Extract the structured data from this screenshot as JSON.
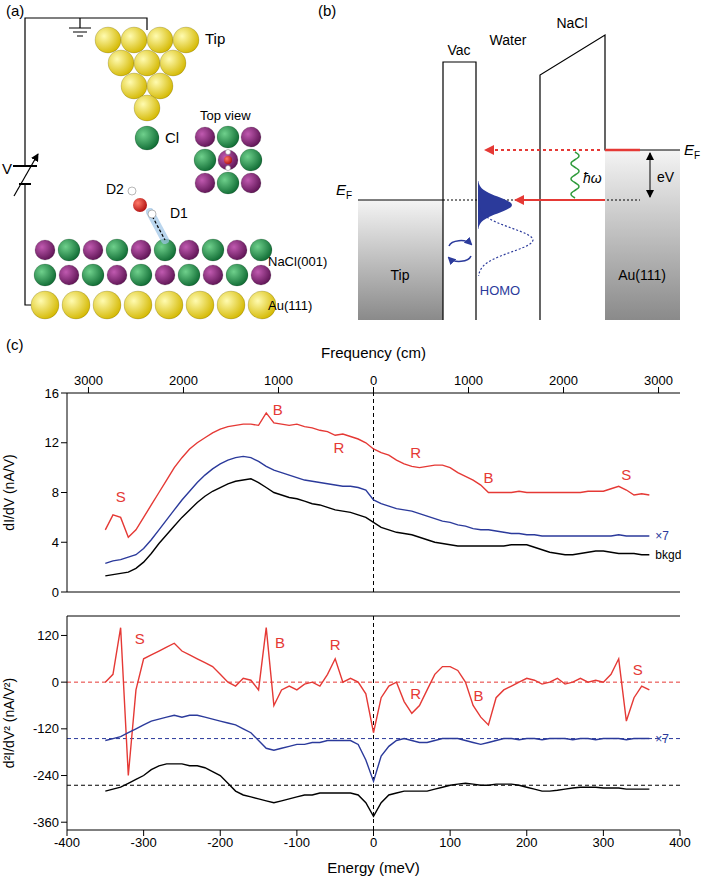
{
  "diagram_a": {
    "label": "(a)",
    "tip": "Tip",
    "cl": "Cl",
    "d2": "D2",
    "d1": "D1",
    "top_view": "Top view",
    "nacl": "NaCl(001)",
    "au": "Au(111)",
    "voltage": "V"
  },
  "diagram_b": {
    "label": "(b)",
    "vac": "Vac",
    "water": "Water",
    "nacl": "NaCl",
    "tip": "Tip",
    "au": "Au(111)",
    "fermi": {
      "main": "E",
      "sub": "F"
    },
    "bias": "eV",
    "photon": "ħω",
    "homo": "HOMO"
  },
  "panel_c": {
    "label": "(c)"
  },
  "chart_data": [
    {
      "type": "line",
      "x2label": "Frequency (cm)",
      "ylabel": "dI/dV (nA/V)",
      "xlim": [
        -400,
        400
      ],
      "x2lim": [
        -400,
        400
      ],
      "x2ticks": [
        {
          "value": -372,
          "label": "3000"
        },
        {
          "value": -248,
          "label": "2000"
        },
        {
          "value": -124,
          "label": "1000"
        },
        0,
        {
          "value": 124,
          "label": "1000"
        },
        {
          "value": 248,
          "label": "2000"
        },
        {
          "value": 372,
          "label": "3000"
        }
      ],
      "ylim": [
        0,
        16
      ],
      "yticks": [
        0,
        4,
        8,
        12,
        16
      ],
      "x": [
        -350,
        -340,
        -330,
        -320,
        -310,
        -300,
        -290,
        -280,
        -270,
        -260,
        -250,
        -240,
        -230,
        -220,
        -210,
        -200,
        -190,
        -180,
        -170,
        -160,
        -150,
        -140,
        -130,
        -120,
        -110,
        -100,
        -90,
        -80,
        -70,
        -60,
        -50,
        -40,
        -30,
        -20,
        -10,
        0,
        10,
        20,
        30,
        40,
        50,
        60,
        70,
        80,
        90,
        100,
        110,
        120,
        130,
        140,
        150,
        160,
        170,
        180,
        190,
        200,
        210,
        220,
        230,
        240,
        250,
        260,
        270,
        280,
        290,
        300,
        310,
        320,
        330,
        340,
        350,
        360
      ],
      "series": [
        {
          "color": "#e53935",
          "values": [
            5.0,
            6.2,
            6.0,
            4.4,
            5.0,
            6.0,
            7.0,
            8.0,
            9.0,
            10.0,
            10.8,
            11.5,
            12.0,
            12.4,
            12.8,
            13.1,
            13.3,
            13.4,
            13.5,
            13.5,
            13.4,
            14.4,
            13.6,
            13.5,
            13.4,
            13.5,
            13.3,
            13.2,
            13.0,
            12.9,
            12.6,
            12.7,
            12.5,
            12.3,
            12.0,
            11.5,
            11.2,
            11.0,
            10.6,
            10.3,
            10.1,
            10.0,
            10.1,
            10.2,
            10.2,
            10.0,
            9.6,
            9.3,
            9.0,
            8.6,
            8.0,
            8.0,
            8.0,
            8.0,
            8.1,
            8.0,
            8.0,
            8.0,
            8.0,
            8.0,
            8.0,
            8.0,
            8.0,
            8.1,
            8.1,
            8.1,
            8.3,
            8.5,
            8.2,
            7.8,
            7.9,
            7.8
          ]
        },
        {
          "name": "×7",
          "color": "#2b3a9b",
          "values": [
            2.3,
            2.5,
            2.6,
            2.8,
            3.0,
            3.5,
            4.2,
            5.0,
            5.8,
            6.6,
            7.4,
            8.1,
            8.8,
            9.4,
            9.9,
            10.3,
            10.6,
            10.8,
            10.9,
            10.8,
            10.5,
            10.1,
            9.8,
            9.6,
            9.4,
            9.2,
            9.0,
            8.9,
            8.8,
            8.7,
            8.6,
            8.5,
            8.5,
            8.4,
            8.2,
            7.4,
            7.1,
            6.9,
            6.7,
            6.6,
            6.5,
            6.3,
            6.1,
            5.9,
            5.7,
            5.6,
            5.4,
            5.3,
            5.1,
            5.0,
            5.0,
            4.9,
            4.8,
            4.7,
            4.7,
            4.6,
            4.6,
            4.5,
            4.5,
            4.5,
            4.5,
            4.5,
            4.5,
            4.5,
            4.5,
            4.5,
            4.5,
            4.6,
            4.5,
            4.5,
            4.5,
            4.5
          ]
        },
        {
          "name": "bkgd",
          "color": "#000000",
          "values": [
            1.3,
            1.4,
            1.5,
            1.6,
            1.9,
            2.4,
            3.1,
            3.9,
            4.6,
            5.3,
            6.0,
            6.6,
            7.2,
            7.7,
            8.1,
            8.4,
            8.7,
            8.9,
            9.0,
            9.1,
            8.8,
            8.4,
            8.0,
            7.8,
            7.6,
            7.5,
            7.3,
            7.1,
            7.0,
            6.8,
            6.6,
            6.5,
            6.4,
            6.2,
            6.0,
            5.6,
            5.2,
            5.0,
            4.8,
            4.7,
            4.6,
            4.4,
            4.2,
            4.0,
            3.9,
            3.8,
            3.7,
            3.7,
            3.7,
            3.7,
            3.7,
            3.7,
            3.7,
            3.8,
            3.8,
            3.8,
            3.6,
            3.4,
            3.2,
            3.1,
            3.0,
            3.0,
            3.1,
            3.2,
            3.3,
            3.3,
            3.2,
            3.1,
            3.1,
            3.1,
            3.0,
            3.0
          ]
        }
      ],
      "annotations": [
        {
          "text": "S",
          "x": -330,
          "y": 7.6,
          "color": "#e53935"
        },
        {
          "text": "B",
          "x": -125,
          "y": 14.6,
          "color": "#e53935"
        },
        {
          "text": "R",
          "x": -45,
          "y": 11.6,
          "color": "#e53935"
        },
        {
          "text": "R",
          "x": 55,
          "y": 11.2,
          "color": "#e53935"
        },
        {
          "text": "B",
          "x": 150,
          "y": 9.2,
          "color": "#e53935"
        },
        {
          "text": "S",
          "x": 330,
          "y": 9.4,
          "color": "#e53935"
        }
      ],
      "reference_lines": [
        {
          "x": 0,
          "color": "#000000",
          "line_style": "dashed"
        }
      ]
    },
    {
      "type": "line",
      "xlabel": "Energy (meV)",
      "ylabel": "d²I/dV² (nA/V²)",
      "xlim": [
        -400,
        400
      ],
      "xticks": [
        -400,
        -300,
        -200,
        -100,
        0,
        100,
        200,
        300,
        400
      ],
      "ylim": [
        -380,
        170
      ],
      "yticks": [
        -360,
        -240,
        -120,
        0,
        120
      ],
      "x": [
        -350,
        -340,
        -330,
        -320,
        -310,
        -300,
        -290,
        -280,
        -270,
        -260,
        -250,
        -240,
        -230,
        -220,
        -210,
        -200,
        -190,
        -180,
        -170,
        -160,
        -150,
        -140,
        -130,
        -120,
        -110,
        -100,
        -90,
        -80,
        -70,
        -60,
        -50,
        -40,
        -30,
        -20,
        -10,
        0,
        10,
        20,
        30,
        40,
        50,
        60,
        70,
        80,
        90,
        100,
        110,
        120,
        130,
        140,
        150,
        160,
        170,
        180,
        190,
        200,
        210,
        220,
        230,
        240,
        250,
        260,
        270,
        280,
        290,
        300,
        310,
        320,
        330,
        340,
        350,
        360
      ],
      "series": [
        {
          "color": "#e53935",
          "values": [
            0,
            20,
            140,
            -240,
            -20,
            60,
            70,
            80,
            90,
            100,
            80,
            70,
            60,
            50,
            40,
            20,
            0,
            -10,
            10,
            5,
            -20,
            140,
            -60,
            -20,
            -10,
            -20,
            -5,
            0,
            -10,
            20,
            60,
            0,
            10,
            0,
            -30,
            -130,
            -40,
            -10,
            0,
            -50,
            -80,
            -60,
            -20,
            20,
            40,
            40,
            30,
            0,
            -60,
            -90,
            -110,
            -40,
            -20,
            -10,
            0,
            10,
            5,
            -5,
            0,
            10,
            -5,
            0,
            10,
            0,
            5,
            0,
            20,
            60,
            -100,
            -40,
            -10,
            -20
          ]
        },
        {
          "name": "×7",
          "color": "#2b3a9b",
          "values": [
            -150,
            -145,
            -140,
            -130,
            -120,
            -110,
            -100,
            -95,
            -90,
            -85,
            -90,
            -85,
            -85,
            -90,
            -95,
            -100,
            -105,
            -110,
            -120,
            -130,
            -150,
            -170,
            -175,
            -170,
            -165,
            -160,
            -160,
            -155,
            -155,
            -150,
            -150,
            -150,
            -150,
            -160,
            -200,
            -255,
            -190,
            -165,
            -150,
            -145,
            -150,
            -155,
            -155,
            -150,
            -145,
            -145,
            -145,
            -150,
            -155,
            -160,
            -155,
            -150,
            -145,
            -145,
            -148,
            -145,
            -145,
            -148,
            -145,
            -145,
            -145,
            -148,
            -145,
            -145,
            -148,
            -145,
            -145,
            -145,
            -148,
            -145,
            -145,
            -145
          ]
        },
        {
          "color": "#000000",
          "values": [
            -280,
            -275,
            -270,
            -260,
            -250,
            -240,
            -225,
            -215,
            -210,
            -210,
            -210,
            -215,
            -215,
            -220,
            -230,
            -240,
            -260,
            -280,
            -290,
            -295,
            -300,
            -305,
            -310,
            -305,
            -300,
            -295,
            -290,
            -290,
            -285,
            -285,
            -285,
            -285,
            -285,
            -290,
            -310,
            -345,
            -310,
            -290,
            -285,
            -280,
            -280,
            -280,
            -280,
            -275,
            -270,
            -265,
            -262,
            -260,
            -262,
            -265,
            -265,
            -262,
            -262,
            -262,
            -265,
            -270,
            -275,
            -280,
            -280,
            -278,
            -275,
            -272,
            -270,
            -270,
            -270,
            -272,
            -272,
            -272,
            -275,
            -275,
            -275,
            -275
          ]
        }
      ],
      "annotations": [
        {
          "text": "S",
          "x": -305,
          "y": 110,
          "color": "#e53935"
        },
        {
          "text": "B",
          "x": -122,
          "y": 100,
          "color": "#e53935"
        },
        {
          "text": "R",
          "x": -50,
          "y": 95,
          "color": "#e53935"
        },
        {
          "text": "R",
          "x": 55,
          "y": -30,
          "color": "#e53935"
        },
        {
          "text": "B",
          "x": 137,
          "y": -35,
          "color": "#e53935"
        },
        {
          "text": "S",
          "x": 345,
          "y": 30,
          "color": "#e53935"
        }
      ],
      "reference_lines": [
        {
          "y": 0,
          "color": "#e53935",
          "line_style": "dashed"
        },
        {
          "y": -145,
          "color": "#2b3a9b",
          "line_style": "dashed"
        },
        {
          "y": -265,
          "color": "#000000",
          "line_style": "dashed"
        },
        {
          "x": 0,
          "color": "#000000",
          "line_style": "dashed"
        }
      ]
    }
  ]
}
